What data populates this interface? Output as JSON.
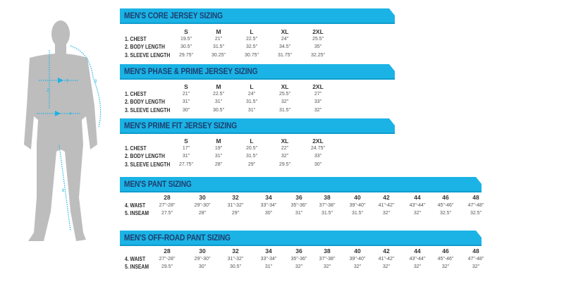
{
  "figure": {
    "measure_labels": [
      "1",
      "2",
      "3",
      "4",
      "6"
    ],
    "accent": "#1bb3e6",
    "silhouette_color": "#bdbdbd"
  },
  "sections": [
    {
      "title": "MEN'S CORE JERSEY SIZING",
      "sizes": [
        "S",
        "M",
        "L",
        "XL",
        "2XL"
      ],
      "rows": [
        {
          "label": "1. CHEST",
          "values": [
            "19.5\"",
            "21\"",
            "22.5\"",
            "24\"",
            "25.5\""
          ]
        },
        {
          "label": "2. BODY LENGTH",
          "values": [
            "30.5\"",
            "31.5\"",
            "32.5\"",
            "34.5\"",
            "35\""
          ]
        },
        {
          "label": "3. SLEEVE LENGTH",
          "values": [
            "29.75\"",
            "30.25\"",
            "30.75\"",
            "31.75\"",
            "32.25\""
          ]
        }
      ]
    },
    {
      "title": "MEN'S PHASE & PRIME JERSEY SIZING",
      "sizes": [
        "S",
        "M",
        "L",
        "XL",
        "2XL"
      ],
      "rows": [
        {
          "label": "1. CHEST",
          "values": [
            "21\"",
            "22.5\"",
            "24\"",
            "25.5\"",
            "27\""
          ]
        },
        {
          "label": "2. BODY LENGTH",
          "values": [
            "31\"",
            "31\"",
            "31.5\"",
            "32\"",
            "33\""
          ]
        },
        {
          "label": "3. SLEEVE LENGTH",
          "values": [
            "30\"",
            "30.5\"",
            "31\"",
            "31.5\"",
            "32\""
          ]
        }
      ]
    },
    {
      "title": "MEN'S PRIME FIT JERSEY SIZING",
      "sizes": [
        "S",
        "M",
        "L",
        "XL",
        "2XL"
      ],
      "rows": [
        {
          "label": "1. CHEST",
          "values": [
            "17\"",
            "19\"",
            "20.5\"",
            "22\"",
            "24.75\""
          ]
        },
        {
          "label": "2. BODY LENGTH",
          "values": [
            "31\"",
            "31\"",
            "31.5\"",
            "32\"",
            "33\""
          ]
        },
        {
          "label": "3. SLEEVE LENGTH",
          "values": [
            "27.75\"",
            "28\"",
            "29\"",
            "29.5\"",
            "30\""
          ]
        }
      ]
    },
    {
      "title": "MEN'S PANT SIZING",
      "sizes": [
        "28",
        "30",
        "32",
        "34",
        "36",
        "38",
        "40",
        "42",
        "44",
        "46",
        "48"
      ],
      "rows": [
        {
          "label": "4. WAIST",
          "values": [
            "27\"-28\"",
            "29\"-30\"",
            "31\"-32\"",
            "33\"-34\"",
            "35\"-36\"",
            "37\"-38\"",
            "39\"-40\"",
            "41\"-42\"",
            "43\"-44\"",
            "45\"-46\"",
            "47\"-48\""
          ]
        },
        {
          "label": "5. INSEAM",
          "values": [
            "27.5\"",
            "28\"",
            "29\"",
            "30\"",
            "31\"",
            "31.5\"",
            "31.5\"",
            "32\"",
            "32\"",
            "32.5\"",
            "32.5\""
          ]
        }
      ]
    },
    {
      "title": "MEN'S OFF-ROAD PANT SIZING",
      "sizes": [
        "28",
        "30",
        "32",
        "34",
        "36",
        "38",
        "40",
        "42",
        "44",
        "46",
        "48"
      ],
      "rows": [
        {
          "label": "4. WAIST",
          "values": [
            "27\"-28\"",
            "29\"-30\"",
            "31\"-32\"",
            "33\"-34\"",
            "35\"-36\"",
            "37\"-38\"",
            "39\"-40\"",
            "41\"-42\"",
            "43\"-44\"",
            "45\"-46\"",
            "47\"-48\""
          ]
        },
        {
          "label": "5. INSEAM",
          "values": [
            "29.5\"",
            "30\"",
            "30.5\"",
            "31\"",
            "32\"",
            "32\"",
            "32\"",
            "32\"",
            "32\"",
            "32\"",
            "32\""
          ]
        }
      ]
    }
  ]
}
